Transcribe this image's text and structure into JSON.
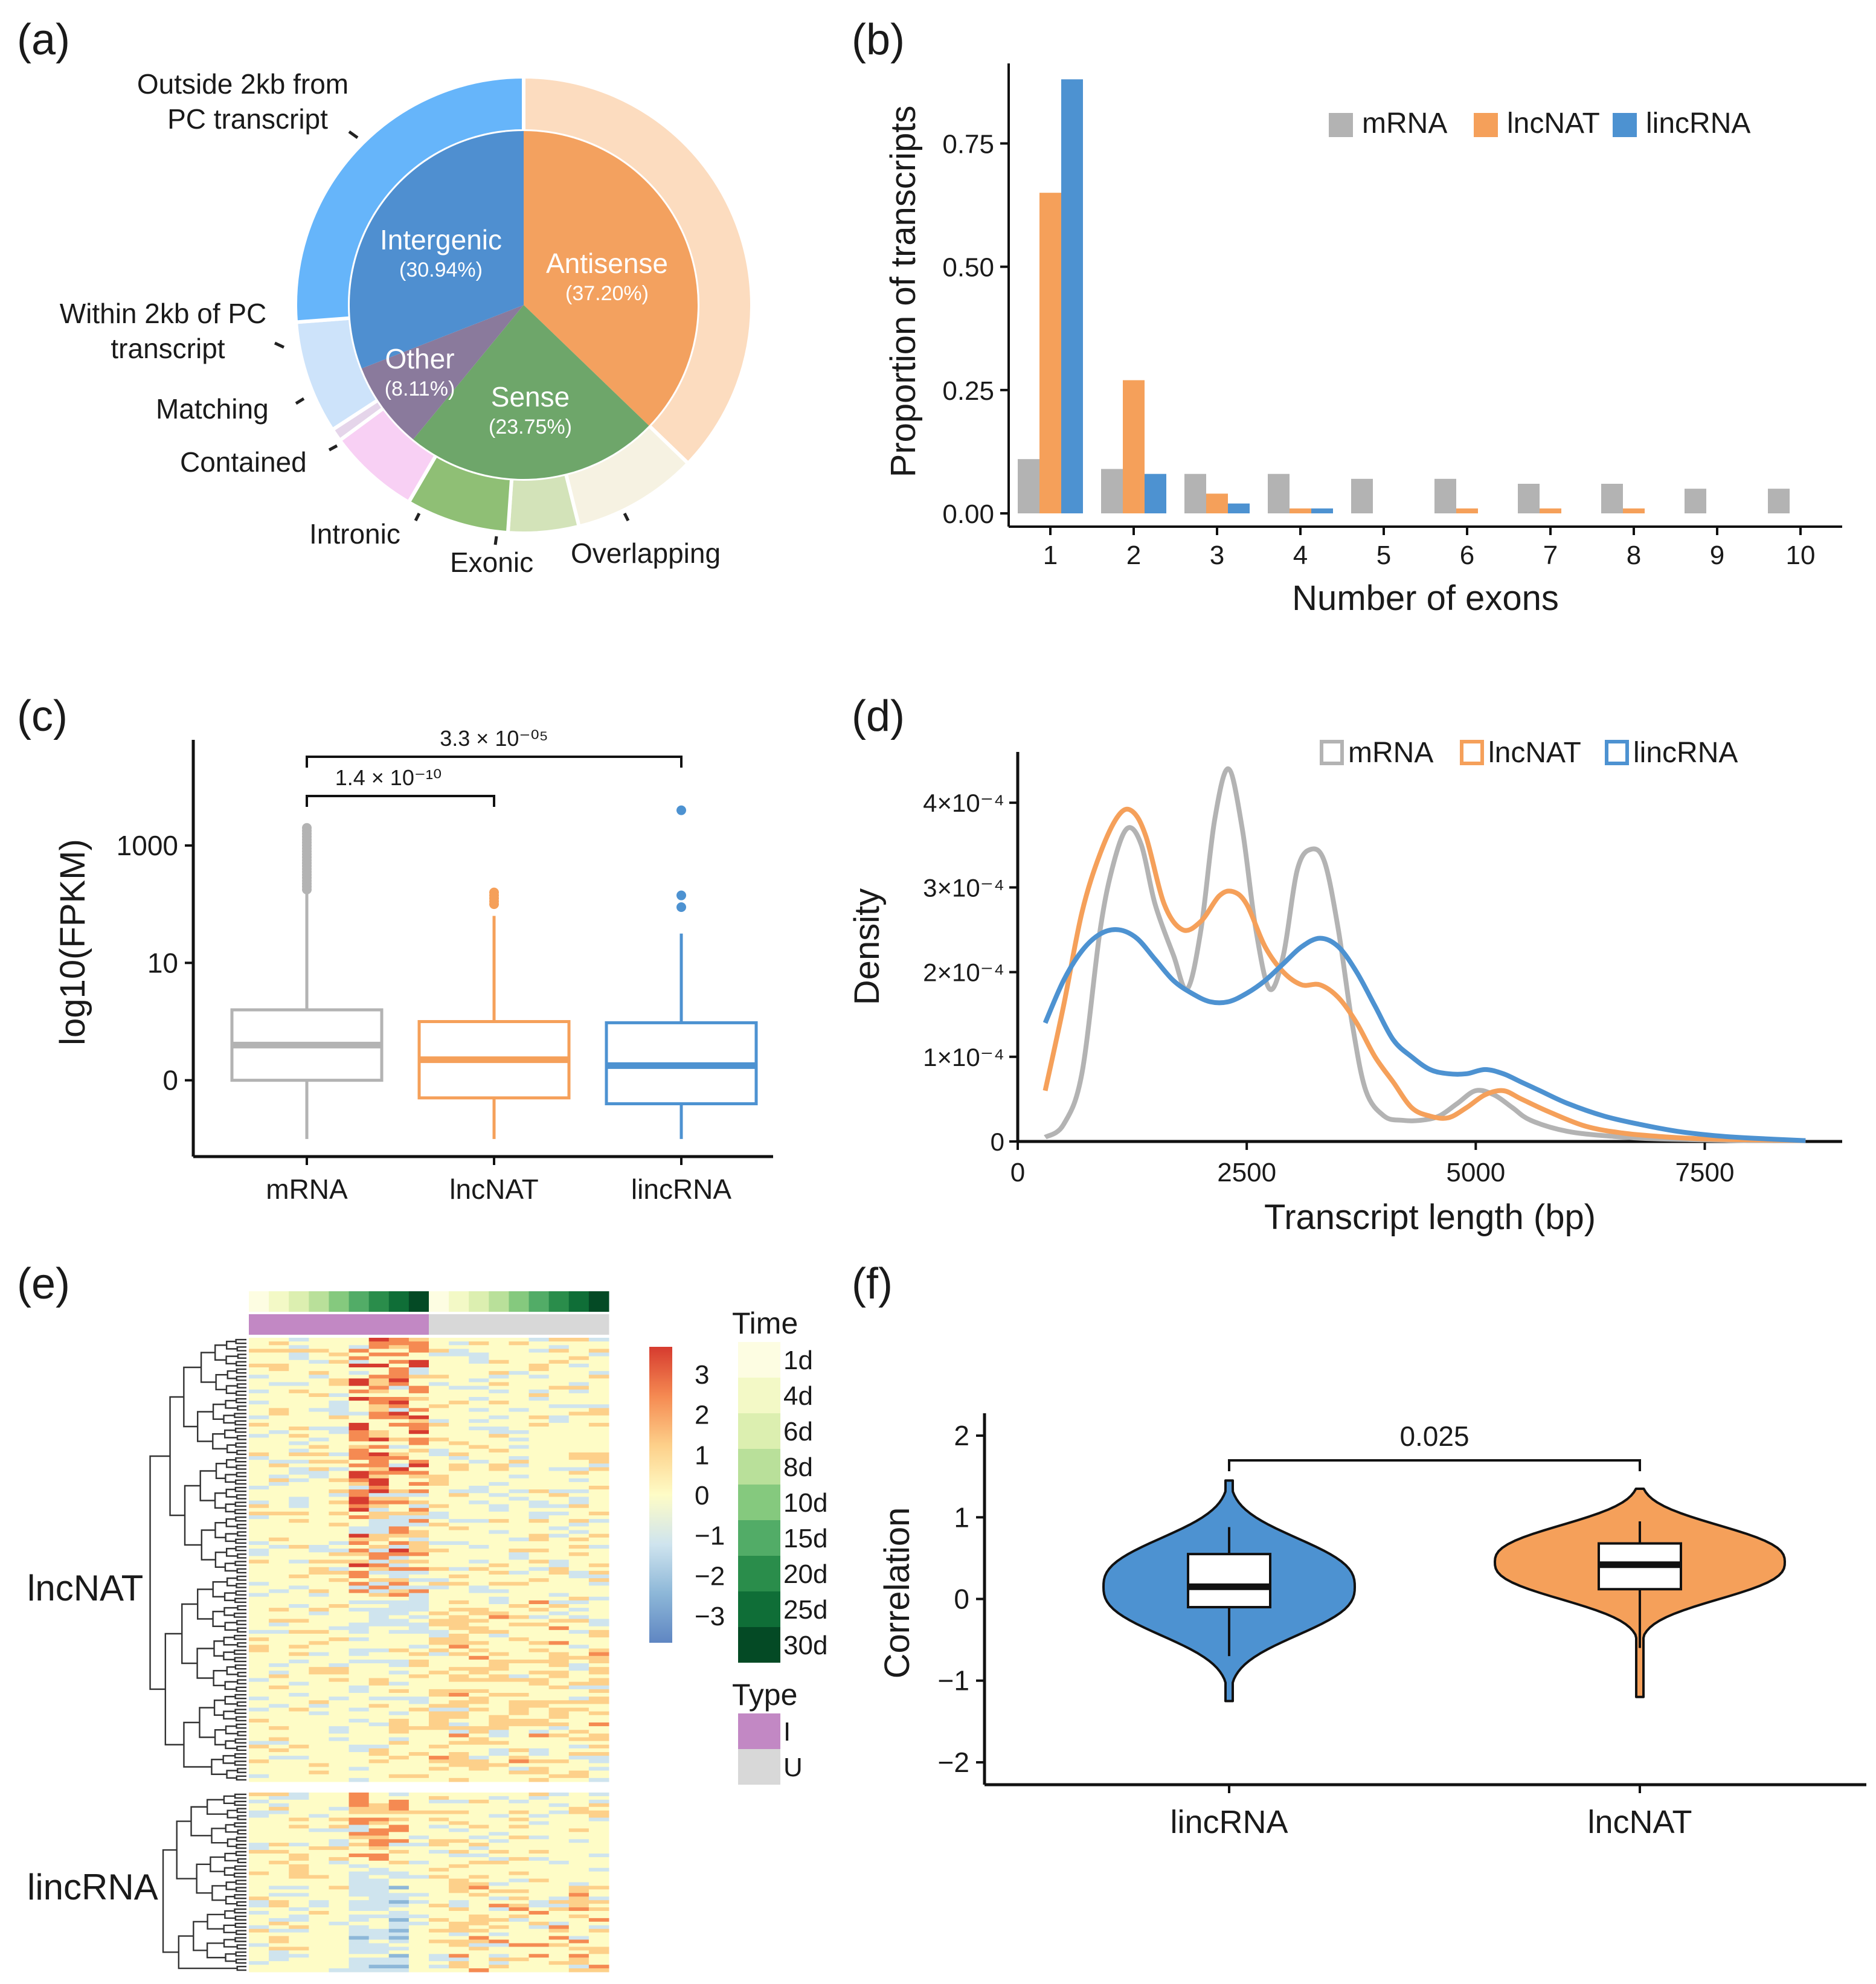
{
  "panels": {
    "a": {
      "label": "(a)",
      "inner": [
        {
          "name": "Antisense",
          "pct": "(37.20%)",
          "value": 37.2,
          "color": "#f3a15f"
        },
        {
          "name": "Sense",
          "pct": "(23.75%)",
          "value": 23.75,
          "color": "#6ea66a"
        },
        {
          "name": "Other",
          "pct": "(8.11%)",
          "value": 8.11,
          "color": "#8a7a9c"
        },
        {
          "name": "Intergenic",
          "pct": "(30.94%)",
          "value": 30.94,
          "color": "#4f8fd0"
        }
      ],
      "outer": [
        {
          "name": "Antisense-outer",
          "value": 37.2,
          "color": "#fcdcbf"
        },
        {
          "name": "Overlapping",
          "value": 8.9,
          "color": "#f6f2e2"
        },
        {
          "name": "Exonic",
          "value": 5.0,
          "color": "#d3e3b9"
        },
        {
          "name": "Intronic",
          "value": 7.3,
          "color": "#8fbf75"
        },
        {
          "name": "Contained",
          "value": 6.5,
          "color": "#f8d0f4"
        },
        {
          "name": "Matching",
          "value": 0.9,
          "color": "#e5d5ea"
        },
        {
          "name": "Within 2kb of PC transcript",
          "value": 8.0,
          "color": "#cde3fa"
        },
        {
          "name": "Outside 2kb from PC transcript",
          "value": 26.2,
          "color": "#66b5fa"
        }
      ],
      "labels": {
        "outside_line1": "Outside 2kb from",
        "outside_line2": "PC transcript",
        "within_line1": "Within 2kb of PC",
        "within_line2": "transcript",
        "matching": "Matching",
        "contained": "Contained",
        "intronic": "Intronic",
        "exonic": "Exonic",
        "overlapping": "Overlapping"
      }
    },
    "b": {
      "label": "(b)"
    },
    "c": {
      "label": "(c)"
    },
    "d": {
      "label": "(d)"
    },
    "e": {
      "label": "(e)",
      "row_group_1": "lncNAT",
      "row_group_2": "lincRNA",
      "time_legend_title": "Time",
      "time_levels": [
        "1d",
        "4d",
        "6d",
        "8d",
        "10d",
        "15d",
        "20d",
        "25d",
        "30d"
      ],
      "time_colors": [
        "#fdfde2",
        "#f3f9c6",
        "#dcefb0",
        "#b9e09a",
        "#85c97e",
        "#52ac67",
        "#2a8d4b",
        "#0f6e37",
        "#044a25"
      ],
      "type_legend_title": "Type",
      "type_levels": [
        "I",
        "U"
      ],
      "type_colors": [
        "#c288c4",
        "#d8d8d8"
      ],
      "scale_ticks": [
        "3",
        "2",
        "1",
        "0",
        "−1",
        "−2",
        "−3"
      ],
      "scale_colors": [
        "#d63b2f",
        "#f58a52",
        "#fdd08a",
        "#fefcc6",
        "#cfe4ee",
        "#8db7d8",
        "#5f86c2"
      ]
    },
    "f": {
      "label": "(f)"
    }
  },
  "chart_data": [
    {
      "panel": "b",
      "type": "bar",
      "categories": [
        "1",
        "2",
        "3",
        "4",
        "5",
        "6",
        "7",
        "8",
        "9",
        "10"
      ],
      "series": [
        {
          "name": "mRNA",
          "color": "#b3b3b3",
          "values": [
            0.11,
            0.09,
            0.08,
            0.08,
            0.07,
            0.07,
            0.06,
            0.06,
            0.05,
            0.05
          ]
        },
        {
          "name": "lncNAT",
          "color": "#f5a05a",
          "values": [
            0.65,
            0.27,
            0.04,
            0.01,
            0.0,
            0.01,
            0.01,
            0.01,
            0.0,
            0.0
          ]
        },
        {
          "name": "lincRNA",
          "color": "#4d92d1",
          "values": [
            0.88,
            0.08,
            0.02,
            0.01,
            0.0,
            0.0,
            0.0,
            0.0,
            0.0,
            0.0
          ]
        }
      ],
      "title": "",
      "xlabel": "Number of exons",
      "ylabel": "Proportion of transcripts",
      "ylim": [
        0,
        0.9
      ],
      "yticks": [
        "0.00",
        "0.25",
        "0.50",
        "0.75"
      ],
      "ytick_values": [
        0,
        0.25,
        0.5,
        0.75
      ]
    },
    {
      "panel": "c",
      "type": "box",
      "categories": [
        "mRNA",
        "lncNAT",
        "lincRNA"
      ],
      "colors": [
        "#b3b3b3",
        "#f5a05a",
        "#4d92d1"
      ],
      "boxes": [
        {
          "whisker_low": -1,
          "q1": 0,
          "median": 0.6,
          "q3": 1.2,
          "whisker_high": 3.2,
          "outliers": [
            3.25,
            3.3,
            3.35,
            3.4,
            3.45,
            3.5,
            3.55,
            3.6,
            3.65,
            3.7,
            3.75,
            3.8,
            3.85,
            3.9,
            3.95,
            4.0,
            4.05,
            4.1,
            4.15,
            4.2,
            4.25,
            4.3
          ]
        },
        {
          "whisker_low": -1,
          "q1": -0.3,
          "median": 0.35,
          "q3": 1.0,
          "whisker_high": 2.8,
          "outliers": [
            3.0,
            3.05,
            3.1,
            3.15,
            3.2
          ]
        },
        {
          "whisker_low": -1,
          "q1": -0.4,
          "median": 0.25,
          "q3": 0.98,
          "whisker_high": 2.5,
          "outliers": [
            2.95,
            3.15,
            4.6
          ]
        }
      ],
      "ylabel": "log10(FPKM)",
      "ylim": [
        -1.3,
        5.8
      ],
      "yticks": [
        "0",
        "10",
        "1000"
      ],
      "ytick_values": [
        0,
        2,
        4
      ],
      "brackets": [
        {
          "from": 0,
          "to": 1,
          "label": "1.4 × 10⁻¹⁰"
        },
        {
          "from": 0,
          "to": 2,
          "label": "3.3 × 10⁻⁰⁵"
        }
      ]
    },
    {
      "panel": "d",
      "type": "line",
      "xlabel": "Transcript length (bp)",
      "ylabel": "Density",
      "xlim": [
        0,
        9000
      ],
      "ylim": [
        0,
        0.00046
      ],
      "xticks": [
        "0",
        "2500",
        "5000",
        "7500"
      ],
      "xtick_values": [
        0,
        2500,
        5000,
        7500
      ],
      "yticks": [
        "0",
        "1×10⁻⁴",
        "2×10⁻⁴",
        "3×10⁻⁴",
        "4×10⁻⁴"
      ],
      "ytick_values": [
        0,
        0.0001,
        0.0002,
        0.0003,
        0.0004
      ],
      "series": [
        {
          "name": "mRNA",
          "color": "#b3b3b3",
          "x": [
            300,
            500,
            700,
            900,
            1050,
            1200,
            1350,
            1500,
            1700,
            1850,
            2000,
            2150,
            2300,
            2450,
            2600,
            2750,
            2900,
            3050,
            3200,
            3350,
            3500,
            3650,
            3800,
            4000,
            4200,
            4400,
            4600,
            4800,
            5000,
            5200,
            5400,
            5600,
            6000,
            6500,
            7000,
            7500,
            8000,
            8600
          ],
          "y": [
            5e-06,
            2e-05,
            8e-05,
            0.00025,
            0.00033,
            0.00037,
            0.00035,
            0.00028,
            0.00022,
            0.00018,
            0.00025,
            0.00038,
            0.00044,
            0.00037,
            0.00025,
            0.00018,
            0.00022,
            0.00032,
            0.000345,
            0.00033,
            0.00025,
            0.00014,
            6e-05,
            3e-05,
            2.5e-05,
            2.5e-05,
            3e-05,
            4.5e-05,
            6e-05,
            5.5e-05,
            4e-05,
            2.5e-05,
            1.2e-05,
            6e-06,
            3e-06,
            2e-06,
            1e-06,
            1e-06
          ]
        },
        {
          "name": "lncNAT",
          "color": "#f5a05a",
          "x": [
            300,
            500,
            700,
            900,
            1100,
            1250,
            1400,
            1600,
            1800,
            2000,
            2200,
            2350,
            2500,
            2700,
            2900,
            3100,
            3300,
            3500,
            3700,
            3900,
            4100,
            4300,
            4500,
            4700,
            4900,
            5100,
            5300,
            5500,
            5800,
            6200,
            6600,
            7000,
            7500,
            8000,
            8600
          ],
          "y": [
            6e-05,
            0.00016,
            0.00027,
            0.00034,
            0.000385,
            0.00039,
            0.00036,
            0.00028,
            0.00025,
            0.00026,
            0.00029,
            0.000295,
            0.00028,
            0.00023,
            0.0002,
            0.000185,
            0.000185,
            0.00017,
            0.00014,
            0.0001,
            7e-05,
            4e-05,
            3e-05,
            2.8e-05,
            4e-05,
            5.5e-05,
            6e-05,
            5e-05,
            3.5e-05,
            1.8e-05,
            1e-05,
            6e-06,
            3e-06,
            2e-06,
            1e-06
          ]
        },
        {
          "name": "lincRNA",
          "color": "#4d92d1",
          "x": [
            300,
            500,
            700,
            900,
            1100,
            1300,
            1500,
            1700,
            1900,
            2100,
            2300,
            2500,
            2700,
            2900,
            3100,
            3300,
            3500,
            3700,
            3900,
            4100,
            4300,
            4500,
            4700,
            4900,
            5100,
            5300,
            5500,
            5700,
            6000,
            6400,
            6800,
            7200,
            7600,
            8000,
            8600
          ],
          "y": [
            0.00014,
            0.00019,
            0.000225,
            0.000245,
            0.00025,
            0.00024,
            0.000215,
            0.00019,
            0.000175,
            0.000165,
            0.000165,
            0.000175,
            0.00019,
            0.00021,
            0.00023,
            0.00024,
            0.00023,
            0.0002,
            0.00016,
            0.00012,
            0.0001,
            8.5e-05,
            8e-05,
            8e-05,
            8.5e-05,
            8e-05,
            7e-05,
            6e-05,
            4.5e-05,
            3e-05,
            2e-05,
            1.2e-05,
            7e-06,
            4e-06,
            1e-06
          ]
        }
      ]
    },
    {
      "panel": "f",
      "type": "violin",
      "categories": [
        "lincRNA",
        "lncNAT"
      ],
      "colors": [
        "#4d92d1",
        "#f5a05a"
      ],
      "boxes": [
        {
          "whisker_low": -0.7,
          "q1": -0.1,
          "median": 0.15,
          "q3": 0.55,
          "whisker_high": 0.88
        },
        {
          "whisker_low": -0.6,
          "q1": 0.12,
          "median": 0.42,
          "q3": 0.68,
          "whisker_high": 0.95
        }
      ],
      "ylabel": "Correlation",
      "ylim": [
        -2.2,
        2.2
      ],
      "yticks": [
        "2",
        "1",
        "0",
        "−1",
        "−2"
      ],
      "ytick_values": [
        2,
        1,
        0,
        -1,
        -2
      ],
      "bracket_label": "0.025"
    }
  ]
}
